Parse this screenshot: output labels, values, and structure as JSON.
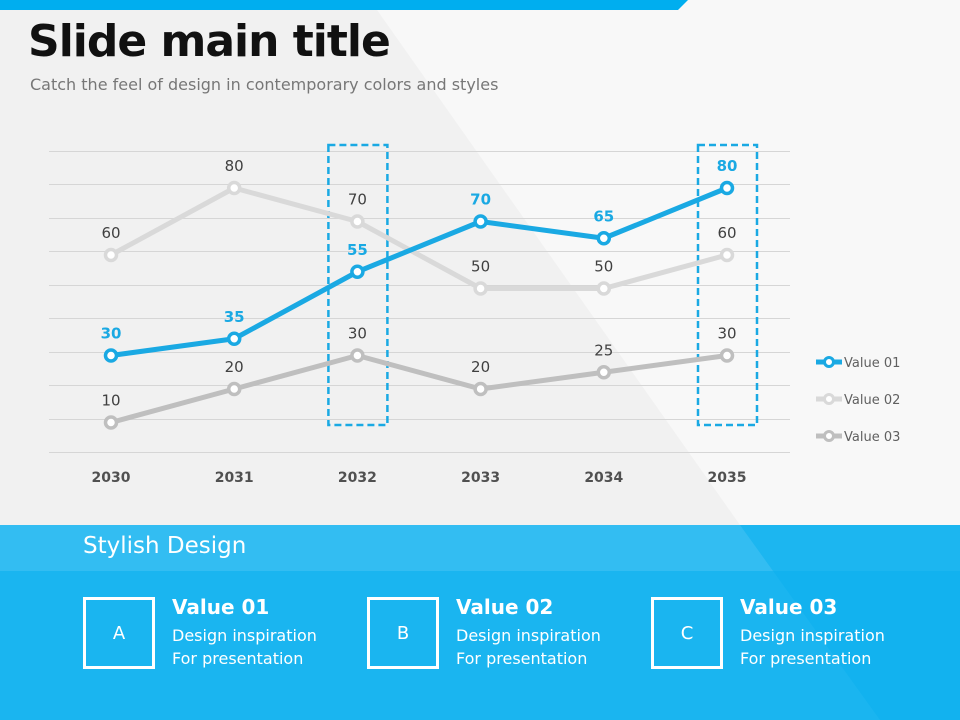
{
  "slide": {
    "title": "Slide main title",
    "subtitle": "Catch the feel of design in contemporary colors and styles"
  },
  "colors": {
    "accent": "#00aeef",
    "series1": "#1aa9e3",
    "series2": "#d9d9d9",
    "series3": "#bfbfbf",
    "band_top": "#33bdf2",
    "band": "#1ab5f0"
  },
  "chart_data": {
    "type": "line",
    "title": "",
    "xlabel": "",
    "ylabel": "",
    "categories": [
      "2030",
      "2031",
      "2032",
      "2033",
      "2034",
      "2035"
    ],
    "ylim": [
      0,
      90
    ],
    "grid": true,
    "legend_position": "right",
    "highlighted_categories": [
      "2032",
      "2035"
    ],
    "series": [
      {
        "name": "Value 01",
        "values": [
          30,
          35,
          55,
          70,
          65,
          80
        ]
      },
      {
        "name": "Value 02",
        "values": [
          60,
          80,
          70,
          50,
          50,
          60
        ]
      },
      {
        "name": "Value 03",
        "values": [
          10,
          20,
          30,
          20,
          25,
          30
        ]
      }
    ]
  },
  "band": {
    "title": "Stylish Design",
    "cards": [
      {
        "letter": "A",
        "heading": "Value 01",
        "line1": "Design inspiration",
        "line2": "For presentation"
      },
      {
        "letter": "B",
        "heading": "Value 02",
        "line1": "Design inspiration",
        "line2": "For presentation"
      },
      {
        "letter": "C",
        "heading": "Value 03",
        "line1": "Design inspiration",
        "line2": "For presentation"
      }
    ]
  }
}
